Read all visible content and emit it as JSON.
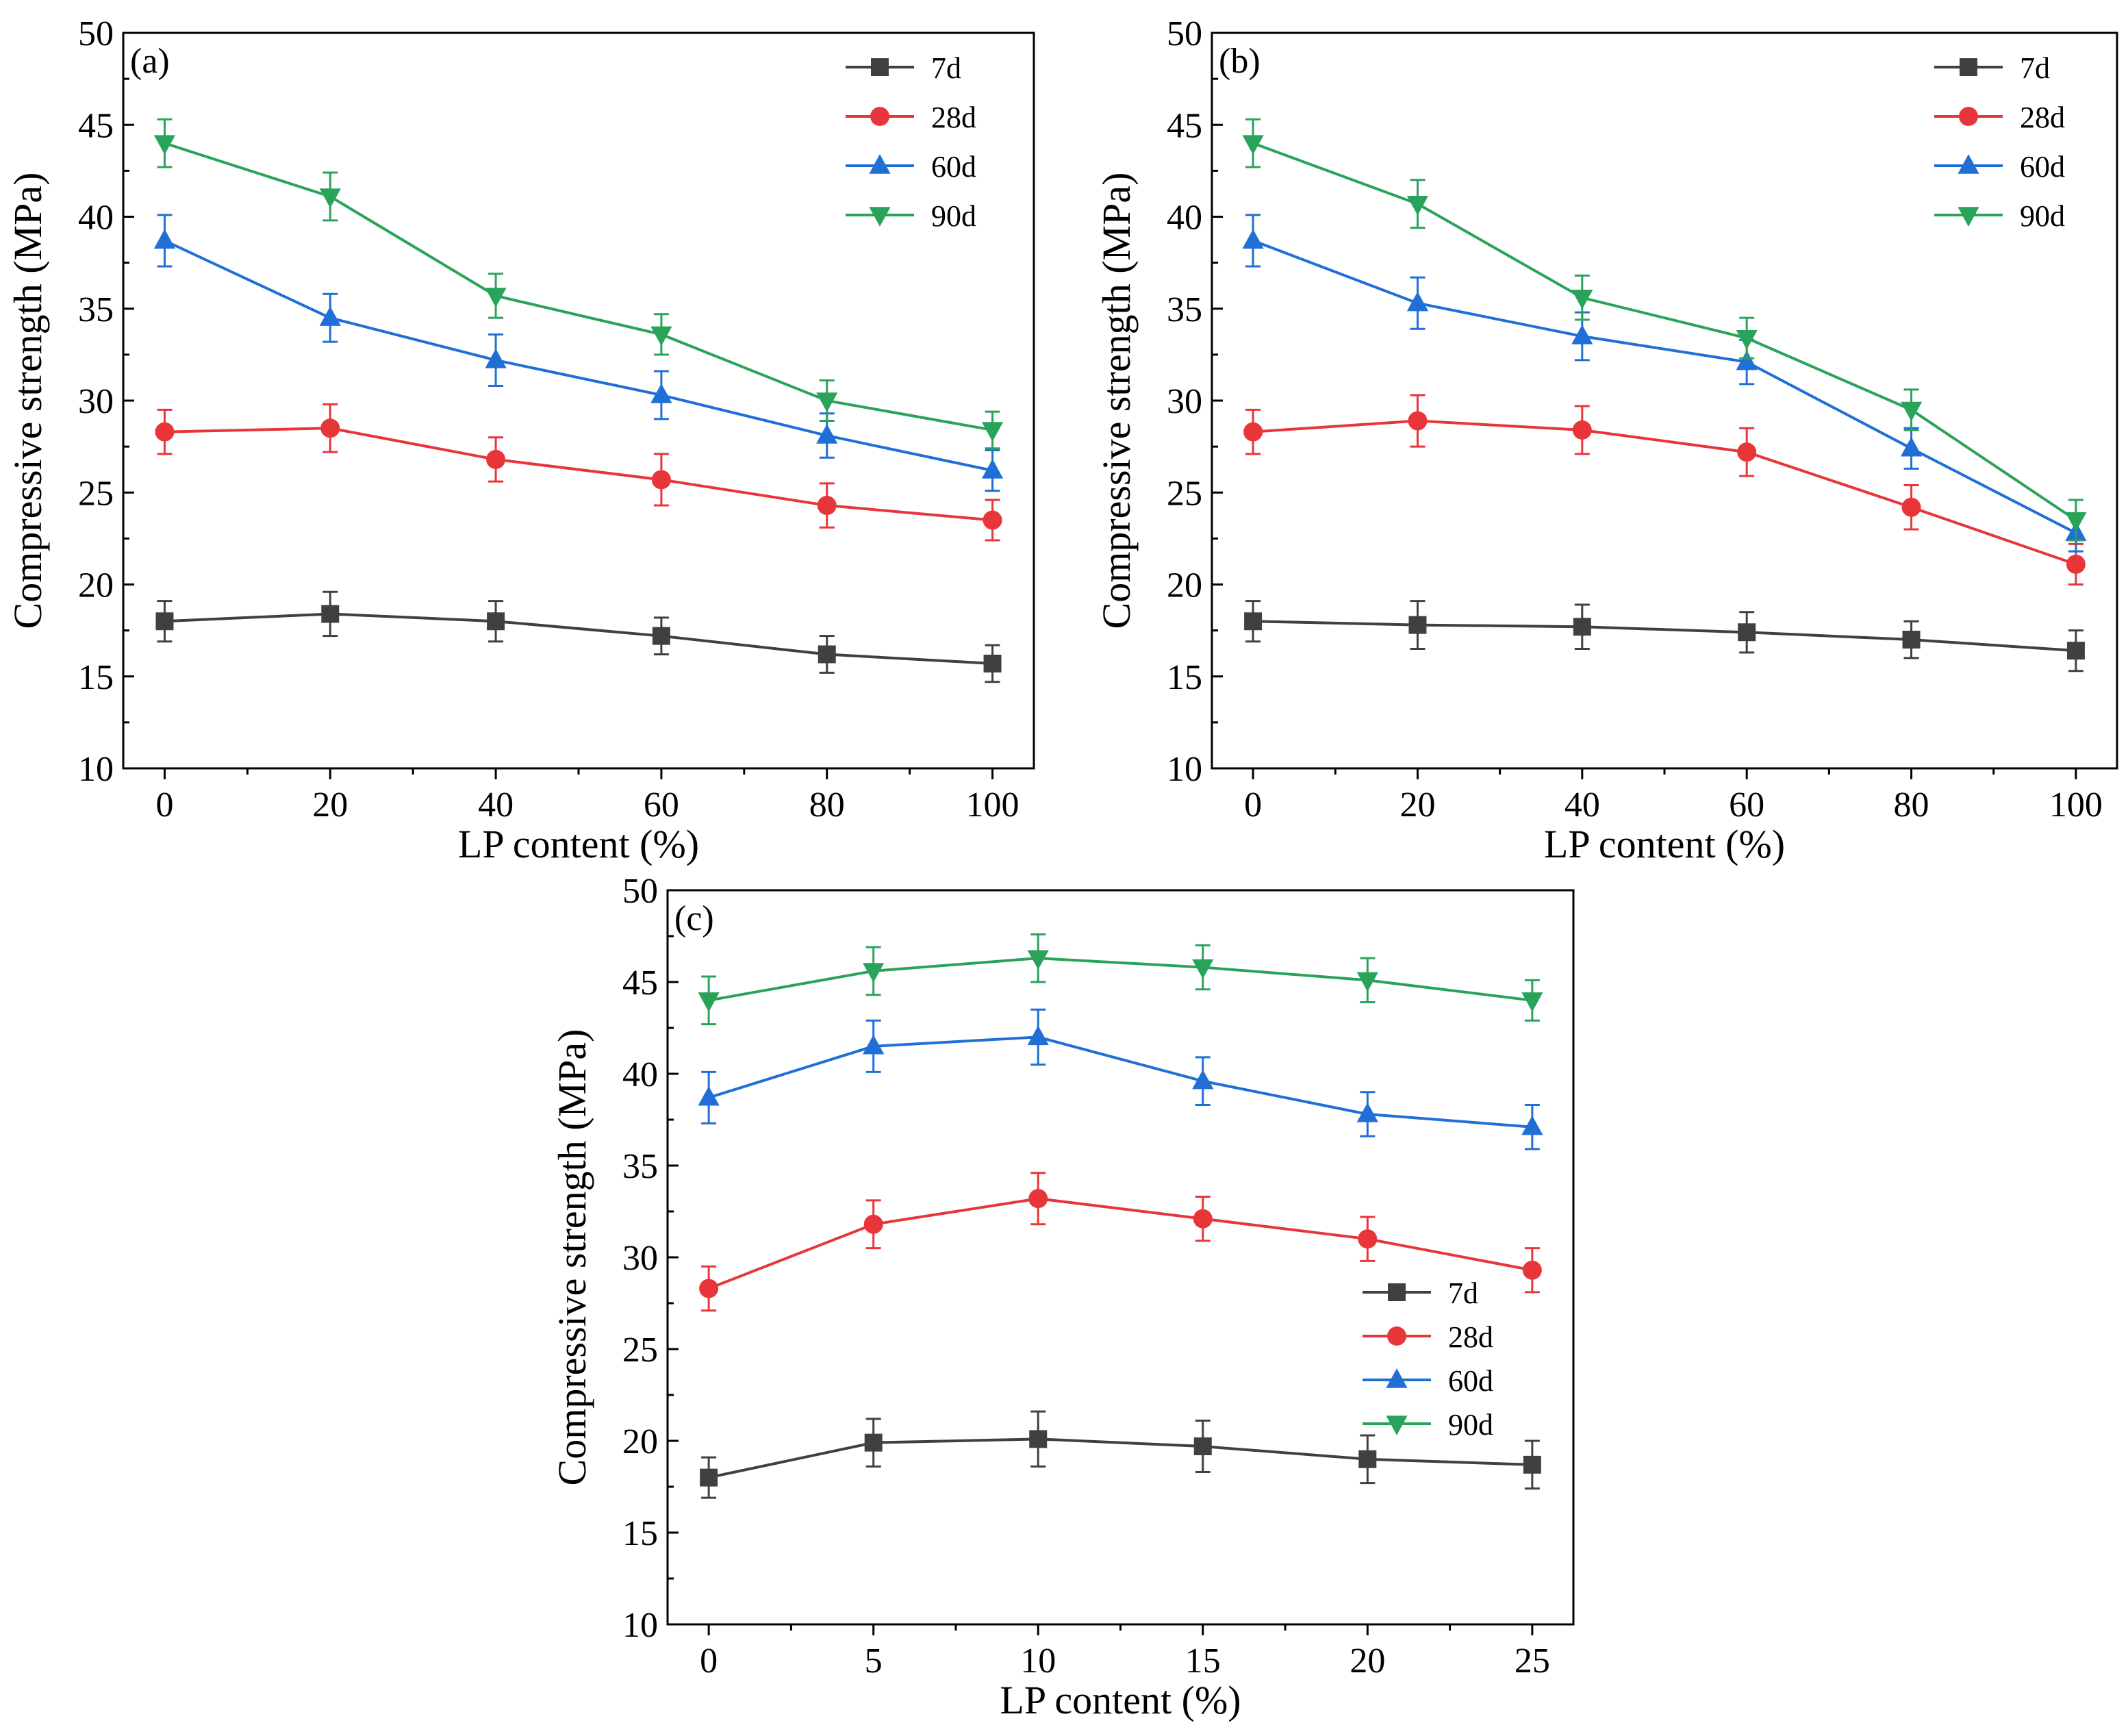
{
  "colors": {
    "7d": "#404040",
    "28d": "#e8353a",
    "60d": "#1f6fd6",
    "90d": "#2aa35a",
    "axis": "#000000"
  },
  "chart_data": [
    {
      "type": "line",
      "panel_label": "(a)",
      "xlabel": "LP content (%)",
      "ylabel": "Compressive strength (MPa)",
      "x": [
        0,
        20,
        40,
        60,
        80,
        100
      ],
      "xlim": [
        -5,
        105
      ],
      "ylim": [
        10,
        50
      ],
      "xticks": [
        0,
        20,
        40,
        60,
        80,
        100
      ],
      "yticks": [
        10,
        15,
        20,
        25,
        30,
        35,
        40,
        45,
        50
      ],
      "legend_position": "top-right",
      "series": [
        {
          "name": "7d",
          "marker": "square",
          "values": [
            18.0,
            18.4,
            18.0,
            17.2,
            16.2,
            15.7
          ],
          "errors": [
            1.1,
            1.2,
            1.1,
            1.0,
            1.0,
            1.0
          ]
        },
        {
          "name": "28d",
          "marker": "circle",
          "values": [
            28.3,
            28.5,
            26.8,
            25.7,
            24.3,
            23.5
          ],
          "errors": [
            1.2,
            1.3,
            1.2,
            1.4,
            1.2,
            1.1
          ]
        },
        {
          "name": "60d",
          "marker": "triangle-up",
          "values": [
            38.7,
            34.5,
            32.2,
            30.3,
            28.1,
            26.2
          ],
          "errors": [
            1.4,
            1.3,
            1.4,
            1.3,
            1.2,
            1.1
          ]
        },
        {
          "name": "90d",
          "marker": "triangle-down",
          "values": [
            44.0,
            41.1,
            35.7,
            33.6,
            30.0,
            28.4
          ],
          "errors": [
            1.3,
            1.3,
            1.2,
            1.1,
            1.1,
            1.0
          ]
        }
      ]
    },
    {
      "type": "line",
      "panel_label": "(b)",
      "xlabel": "LP content (%)",
      "ylabel": "Compressive strength (MPa)",
      "x": [
        0,
        20,
        40,
        60,
        80,
        100
      ],
      "xlim": [
        -5,
        105
      ],
      "ylim": [
        10,
        50
      ],
      "xticks": [
        0,
        20,
        40,
        60,
        80,
        100
      ],
      "yticks": [
        10,
        15,
        20,
        25,
        30,
        35,
        40,
        45,
        50
      ],
      "legend_position": "top-right",
      "series": [
        {
          "name": "7d",
          "marker": "square",
          "values": [
            18.0,
            17.8,
            17.7,
            17.4,
            17.0,
            16.4
          ],
          "errors": [
            1.1,
            1.3,
            1.2,
            1.1,
            1.0,
            1.1
          ]
        },
        {
          "name": "28d",
          "marker": "circle",
          "values": [
            28.3,
            28.9,
            28.4,
            27.2,
            24.2,
            21.1
          ],
          "errors": [
            1.2,
            1.4,
            1.3,
            1.3,
            1.2,
            1.1
          ]
        },
        {
          "name": "60d",
          "marker": "triangle-up",
          "values": [
            38.7,
            35.3,
            33.5,
            32.1,
            27.4,
            22.8
          ],
          "errors": [
            1.4,
            1.4,
            1.3,
            1.2,
            1.1,
            1.0
          ]
        },
        {
          "name": "90d",
          "marker": "triangle-down",
          "values": [
            44.0,
            40.7,
            35.6,
            33.4,
            29.5,
            23.5
          ],
          "errors": [
            1.3,
            1.3,
            1.2,
            1.1,
            1.1,
            1.1
          ]
        }
      ]
    },
    {
      "type": "line",
      "panel_label": "(c)",
      "xlabel": "LP content (%)",
      "ylabel": "Compressive strength (MPa)",
      "x": [
        0,
        5,
        10,
        15,
        20,
        25
      ],
      "xlim": [
        -1.25,
        26.25
      ],
      "ylim": [
        10,
        50
      ],
      "xticks": [
        0,
        5,
        10,
        15,
        20,
        25
      ],
      "yticks": [
        10,
        15,
        20,
        25,
        30,
        35,
        40,
        45,
        50
      ],
      "legend_position": "center-right",
      "series": [
        {
          "name": "7d",
          "marker": "square",
          "values": [
            18.0,
            19.9,
            20.1,
            19.7,
            19.0,
            18.7
          ],
          "errors": [
            1.1,
            1.3,
            1.5,
            1.4,
            1.3,
            1.3
          ]
        },
        {
          "name": "28d",
          "marker": "circle",
          "values": [
            28.3,
            31.8,
            33.2,
            32.1,
            31.0,
            29.3
          ],
          "errors": [
            1.2,
            1.3,
            1.4,
            1.2,
            1.2,
            1.2
          ]
        },
        {
          "name": "60d",
          "marker": "triangle-up",
          "values": [
            38.7,
            41.5,
            42.0,
            39.6,
            37.8,
            37.1
          ],
          "errors": [
            1.4,
            1.4,
            1.5,
            1.3,
            1.2,
            1.2
          ]
        },
        {
          "name": "90d",
          "marker": "triangle-down",
          "values": [
            44.0,
            45.6,
            46.3,
            45.8,
            45.1,
            44.0
          ],
          "errors": [
            1.3,
            1.3,
            1.3,
            1.2,
            1.2,
            1.1
          ]
        }
      ]
    }
  ]
}
